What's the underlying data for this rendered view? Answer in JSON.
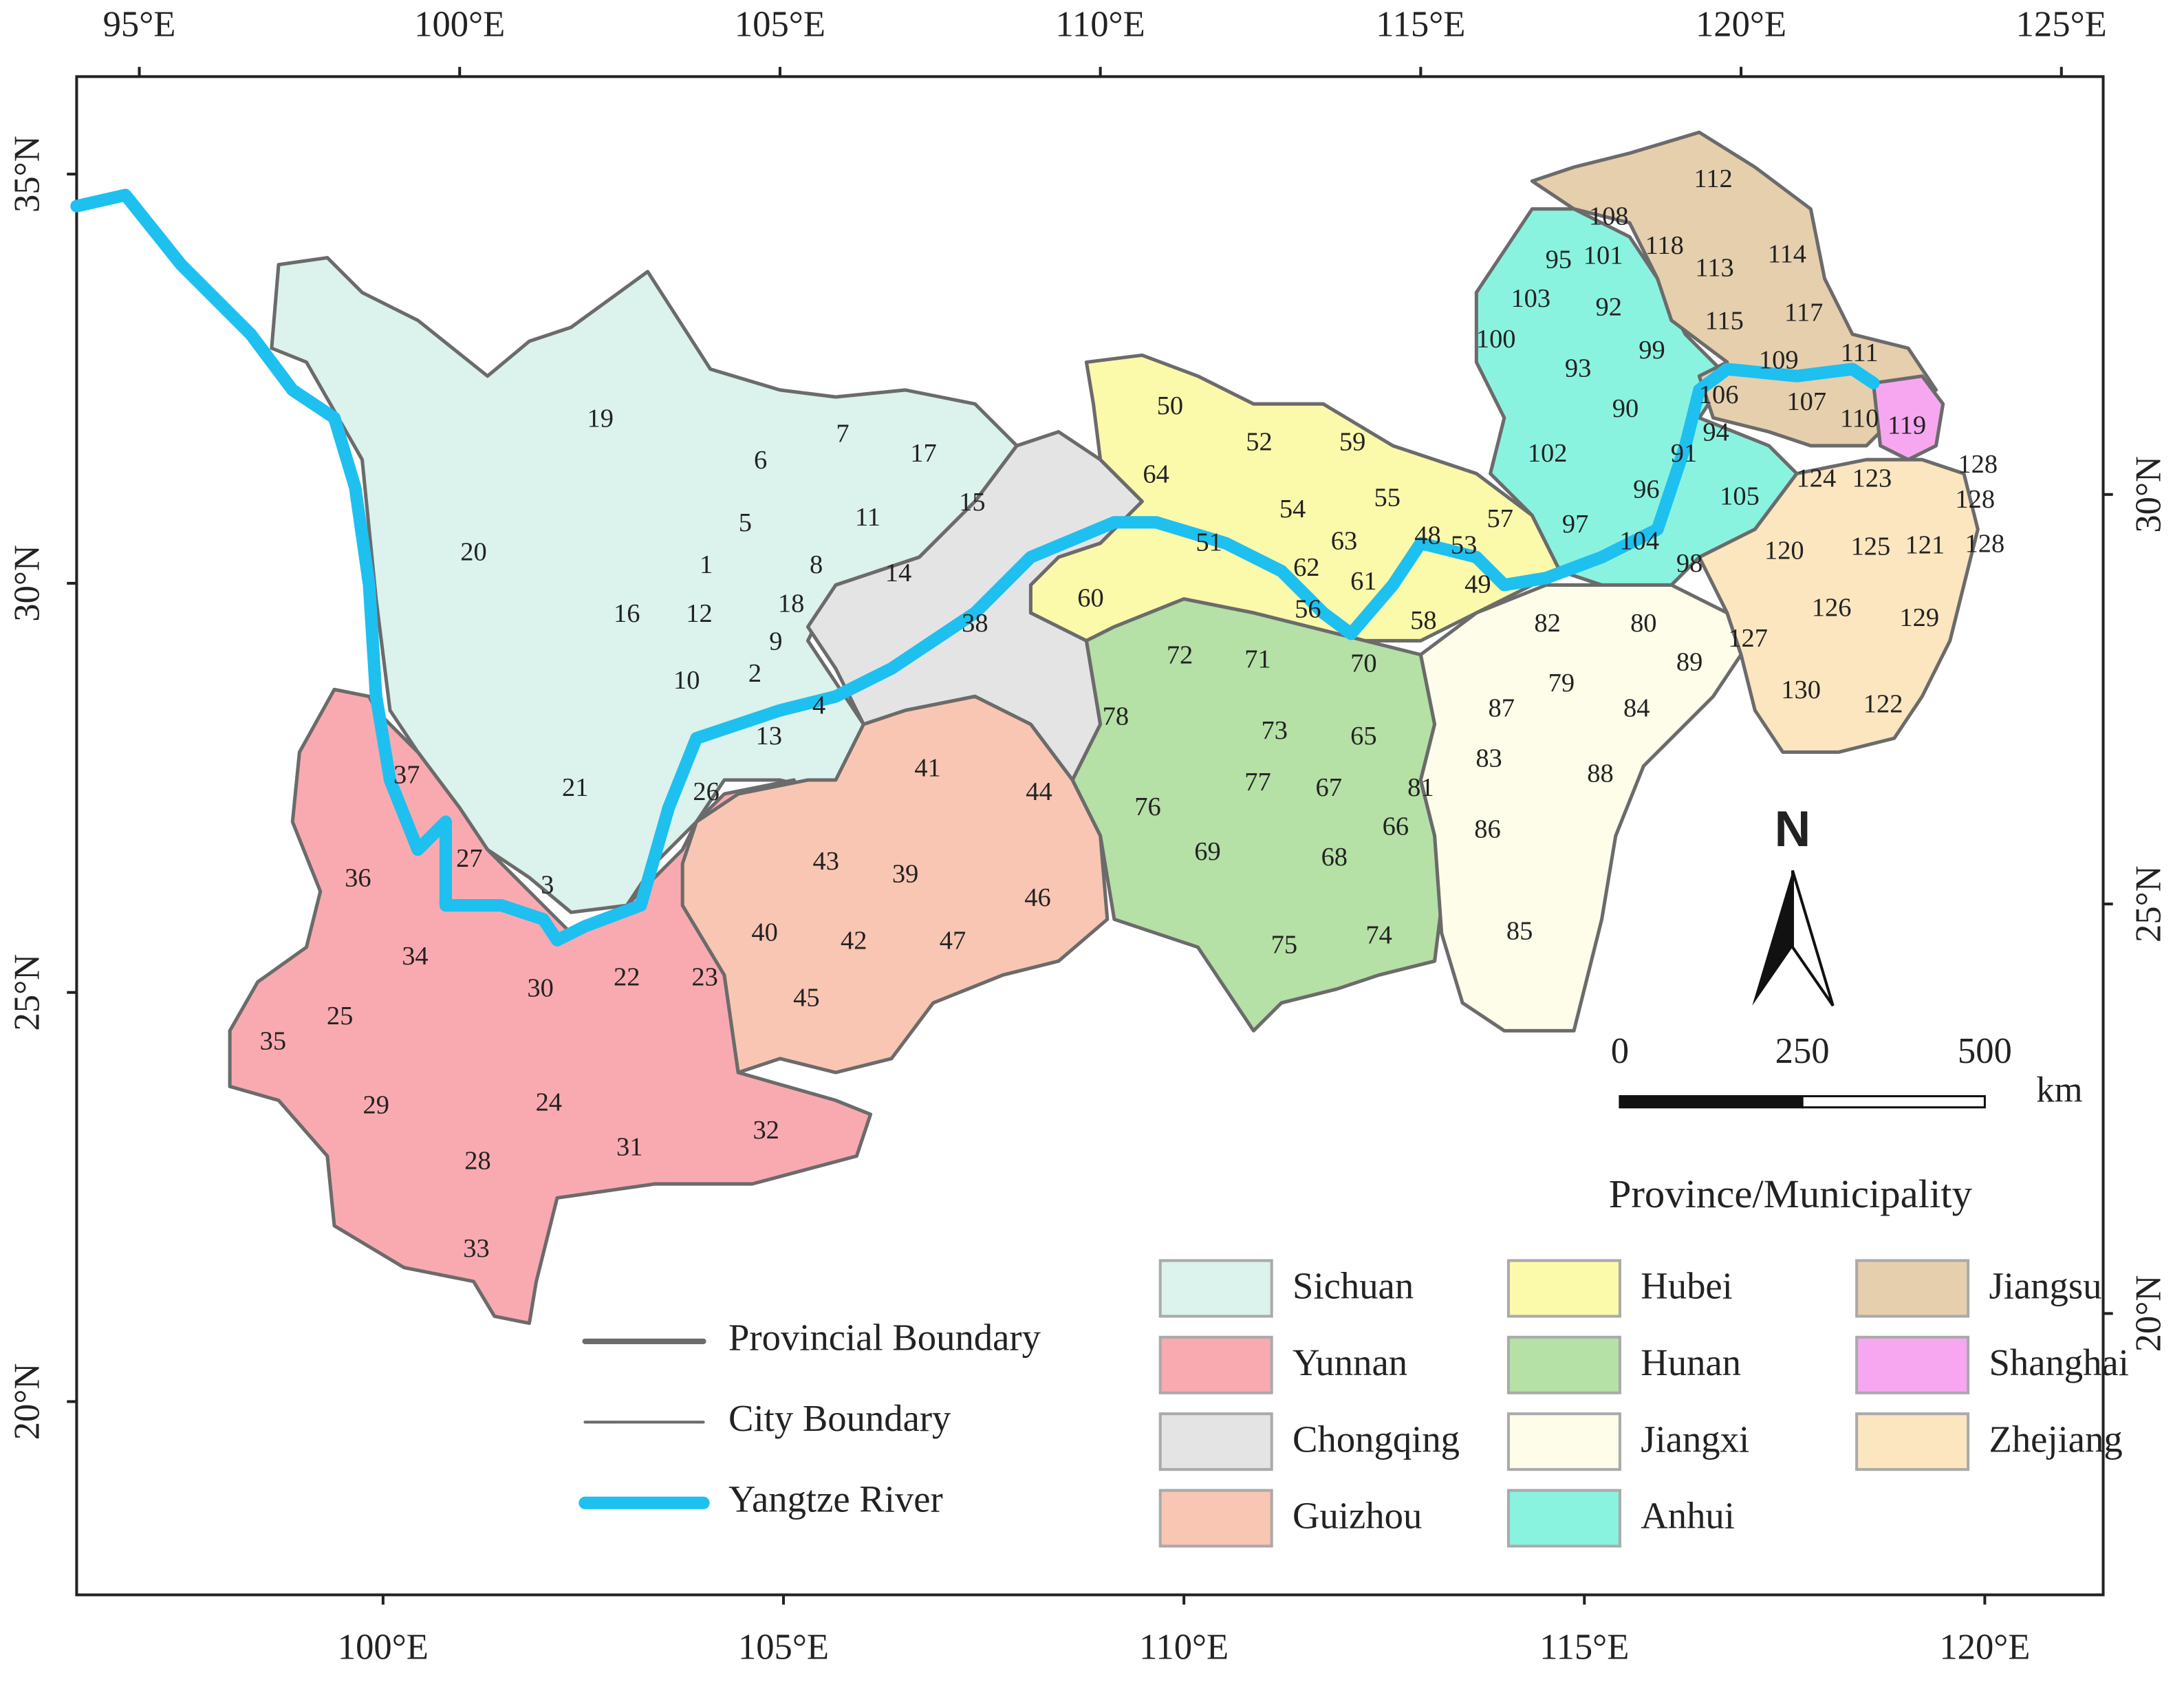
{
  "map": {
    "top_ticks": [
      {
        "value": 95,
        "label": "95°E"
      },
      {
        "value": 100,
        "label": "100°E"
      },
      {
        "value": 105,
        "label": "105°E"
      },
      {
        "value": 110,
        "label": "110°E"
      },
      {
        "value": 115,
        "label": "115°E"
      },
      {
        "value": 120,
        "label": "120°E"
      },
      {
        "value": 125,
        "label": "125°E"
      }
    ],
    "bottom_ticks": [
      {
        "value": 100,
        "label": "100°E"
      },
      {
        "value": 105,
        "label": "105°E"
      },
      {
        "value": 110,
        "label": "110°E"
      },
      {
        "value": 115,
        "label": "115°E"
      },
      {
        "value": 120,
        "label": "120°E"
      }
    ],
    "left_ticks": [
      {
        "value": 35,
        "label": "35°N"
      },
      {
        "value": 30,
        "label": "30°N"
      },
      {
        "value": 25,
        "label": "25°N"
      },
      {
        "value": 20,
        "label": "20°N"
      }
    ],
    "right_ticks": [
      {
        "value": 30,
        "label": "30°N"
      },
      {
        "value": 25,
        "label": "25°N"
      },
      {
        "value": 20,
        "label": "20°N"
      }
    ],
    "north": "N",
    "scale_bar": {
      "ticks": [
        0,
        250,
        500
      ],
      "unit": "km"
    },
    "line_legend": [
      "Provincial Boundary",
      "City Boundary",
      "Yangtze River"
    ],
    "legend_title": "Province/Municipality",
    "provinces": [
      {
        "name": "Sichuan",
        "color": "#dcf2ec",
        "cities": [
          "1",
          "2",
          "3",
          "4",
          "5",
          "6",
          "7",
          "8",
          "9",
          "10",
          "11",
          "12",
          "13",
          "14",
          "15",
          "16",
          "17",
          "18",
          "19",
          "20",
          "21"
        ]
      },
      {
        "name": "Yunnan",
        "color": "#f9aab0",
        "cities": [
          "22",
          "23",
          "24",
          "25",
          "26",
          "27",
          "28",
          "29",
          "30",
          "31",
          "32",
          "33",
          "34",
          "35",
          "36",
          "37"
        ]
      },
      {
        "name": "Chongqing",
        "color": "#e4e4e4",
        "cities": [
          "38"
        ]
      },
      {
        "name": "Guizhou",
        "color": "#f9c6b4",
        "cities": [
          "39",
          "40",
          "41",
          "42",
          "43",
          "44",
          "45",
          "46",
          "47"
        ]
      },
      {
        "name": "Hubei",
        "color": "#fbf9aa",
        "cities": [
          "48",
          "49",
          "50",
          "51",
          "52",
          "53",
          "54",
          "55",
          "56",
          "57",
          "58",
          "59",
          "60",
          "61",
          "62",
          "63",
          "64"
        ]
      },
      {
        "name": "Hunan",
        "color": "#b5e0a6",
        "cities": [
          "65",
          "66",
          "67",
          "68",
          "69",
          "70",
          "71",
          "72",
          "73",
          "74",
          "75",
          "76",
          "77",
          "78"
        ]
      },
      {
        "name": "Jiangxi",
        "color": "#fdfde9",
        "cities": [
          "79",
          "80",
          "81",
          "82",
          "83",
          "84",
          "85",
          "86",
          "87",
          "88",
          "89"
        ]
      },
      {
        "name": "Anhui",
        "color": "#8af3e0",
        "cities": [
          "90",
          "91",
          "92",
          "93",
          "94",
          "95",
          "96",
          "97",
          "98",
          "99",
          "100",
          "101",
          "102",
          "103",
          "104",
          "105"
        ]
      },
      {
        "name": "Jiangsu",
        "color": "#e6cfad",
        "cities": [
          "106",
          "107",
          "108",
          "109",
          "110",
          "111",
          "112",
          "113",
          "114",
          "115",
          "117",
          "118"
        ]
      },
      {
        "name": "Shanghai",
        "color": "#f7a7f0",
        "cities": [
          "119"
        ]
      },
      {
        "name": "Zhejiang",
        "color": "#fbe6c0",
        "cities": [
          "120",
          "121",
          "122",
          "123",
          "124",
          "125",
          "126",
          "127",
          "128",
          "128",
          "128",
          "129",
          "130"
        ]
      }
    ]
  }
}
